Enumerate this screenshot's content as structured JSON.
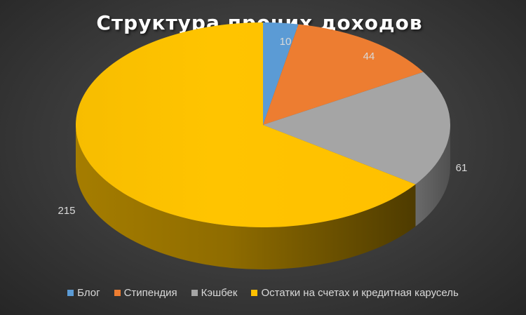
{
  "chart_data": {
    "type": "pie",
    "title": "Структура прочих доходов",
    "categories": [
      "Блог",
      "Стипендия",
      "Кэшбек",
      "Остатки на счетах и кредитная карусель"
    ],
    "values": [
      10,
      44,
      61,
      215
    ],
    "colors": [
      "#5b9bd5",
      "#ed7d31",
      "#a5a5a5",
      "#ffc000"
    ],
    "data_labels": [
      "10",
      "44",
      "61",
      "215"
    ],
    "legend_position": "bottom",
    "style": "3d"
  }
}
